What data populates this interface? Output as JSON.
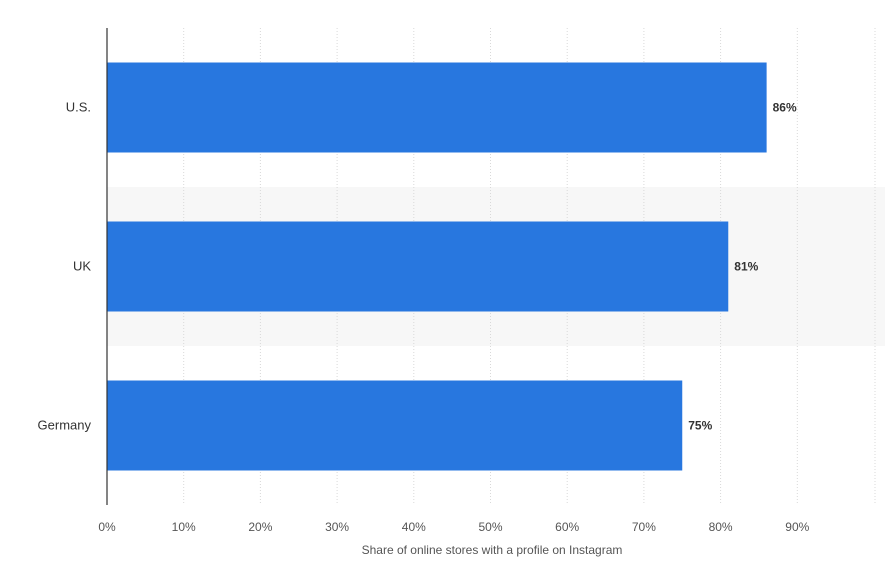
{
  "chart_data": {
    "type": "bar",
    "orientation": "horizontal",
    "categories": [
      "U.S.",
      "UK",
      "Germany"
    ],
    "values": [
      86,
      81,
      75
    ],
    "data_labels": [
      "86%",
      "81%",
      "75%"
    ],
    "xlabel": "Share of online stores with a profile on Instagram",
    "ylabel": "",
    "xlim": [
      0,
      100
    ],
    "x_ticks": [
      0,
      10,
      20,
      30,
      40,
      50,
      60,
      70,
      80,
      90
    ],
    "x_tick_labels": [
      "0%",
      "10%",
      "20%",
      "30%",
      "40%",
      "50%",
      "60%",
      "70%",
      "80%",
      "90%"
    ],
    "grid": true,
    "legend": "none",
    "bar_color": "#2877df",
    "alt_band_color": "#f7f7f7"
  }
}
